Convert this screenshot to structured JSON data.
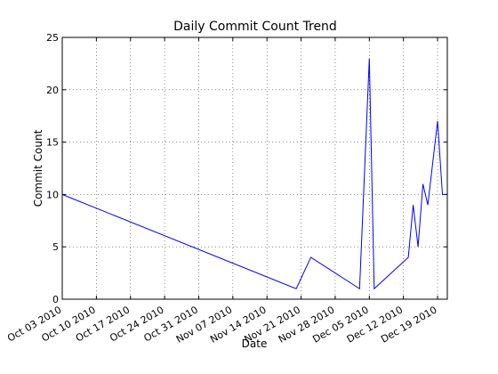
{
  "chart_data": {
    "type": "line",
    "title": "Daily Commit Count Trend",
    "xlabel": "Date",
    "ylabel": "Commit Count",
    "xlim": [
      "2010-10-03",
      "2010-12-21"
    ],
    "ylim": [
      0,
      25
    ],
    "x_ticks": [
      "Oct 03 2010",
      "Oct 10 2010",
      "Oct 17 2010",
      "Oct 24 2010",
      "Oct 31 2010",
      "Nov 07 2010",
      "Nov 14 2010",
      "Nov 21 2010",
      "Nov 28 2010",
      "Dec 05 2010",
      "Dec 12 2010",
      "Dec 19 2010"
    ],
    "x_tick_dates": [
      "2010-10-03",
      "2010-10-10",
      "2010-10-17",
      "2010-10-24",
      "2010-10-31",
      "2010-11-07",
      "2010-11-14",
      "2010-11-21",
      "2010-11-28",
      "2010-12-05",
      "2010-12-12",
      "2010-12-19"
    ],
    "y_ticks": [
      0,
      5,
      10,
      15,
      20,
      25
    ],
    "grid": true,
    "series": [
      {
        "color": "#0000ff",
        "x": [
          "2010-10-03",
          "2010-11-20",
          "2010-11-23",
          "2010-12-03",
          "2010-12-05",
          "2010-12-06",
          "2010-12-13",
          "2010-12-14",
          "2010-12-15",
          "2010-12-16",
          "2010-12-17",
          "2010-12-19",
          "2010-12-20",
          "2010-12-21"
        ],
        "y": [
          10,
          1,
          4,
          1,
          23,
          1,
          4,
          9,
          5,
          11,
          9,
          17,
          10,
          10
        ]
      }
    ]
  }
}
